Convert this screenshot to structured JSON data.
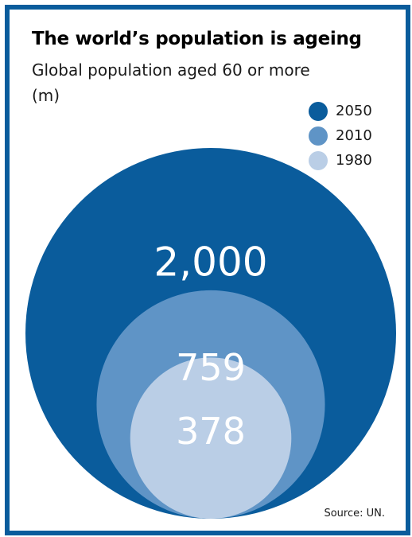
{
  "chart_data": {
    "type": "bubble",
    "title": "The world’s population is ageing",
    "subtitle": "Global population aged 60 or more",
    "unit": "(m)",
    "series": [
      {
        "name": "2050",
        "value": 2000,
        "label": "2,000",
        "color": "#0a5c9c"
      },
      {
        "name": "2010",
        "value": 759,
        "label": "759",
        "color": "#5f94c6"
      },
      {
        "name": "1980",
        "value": 378,
        "label": "378",
        "color": "#bacee6"
      }
    ],
    "legend_position": "top-right",
    "source": "Source: UN."
  }
}
